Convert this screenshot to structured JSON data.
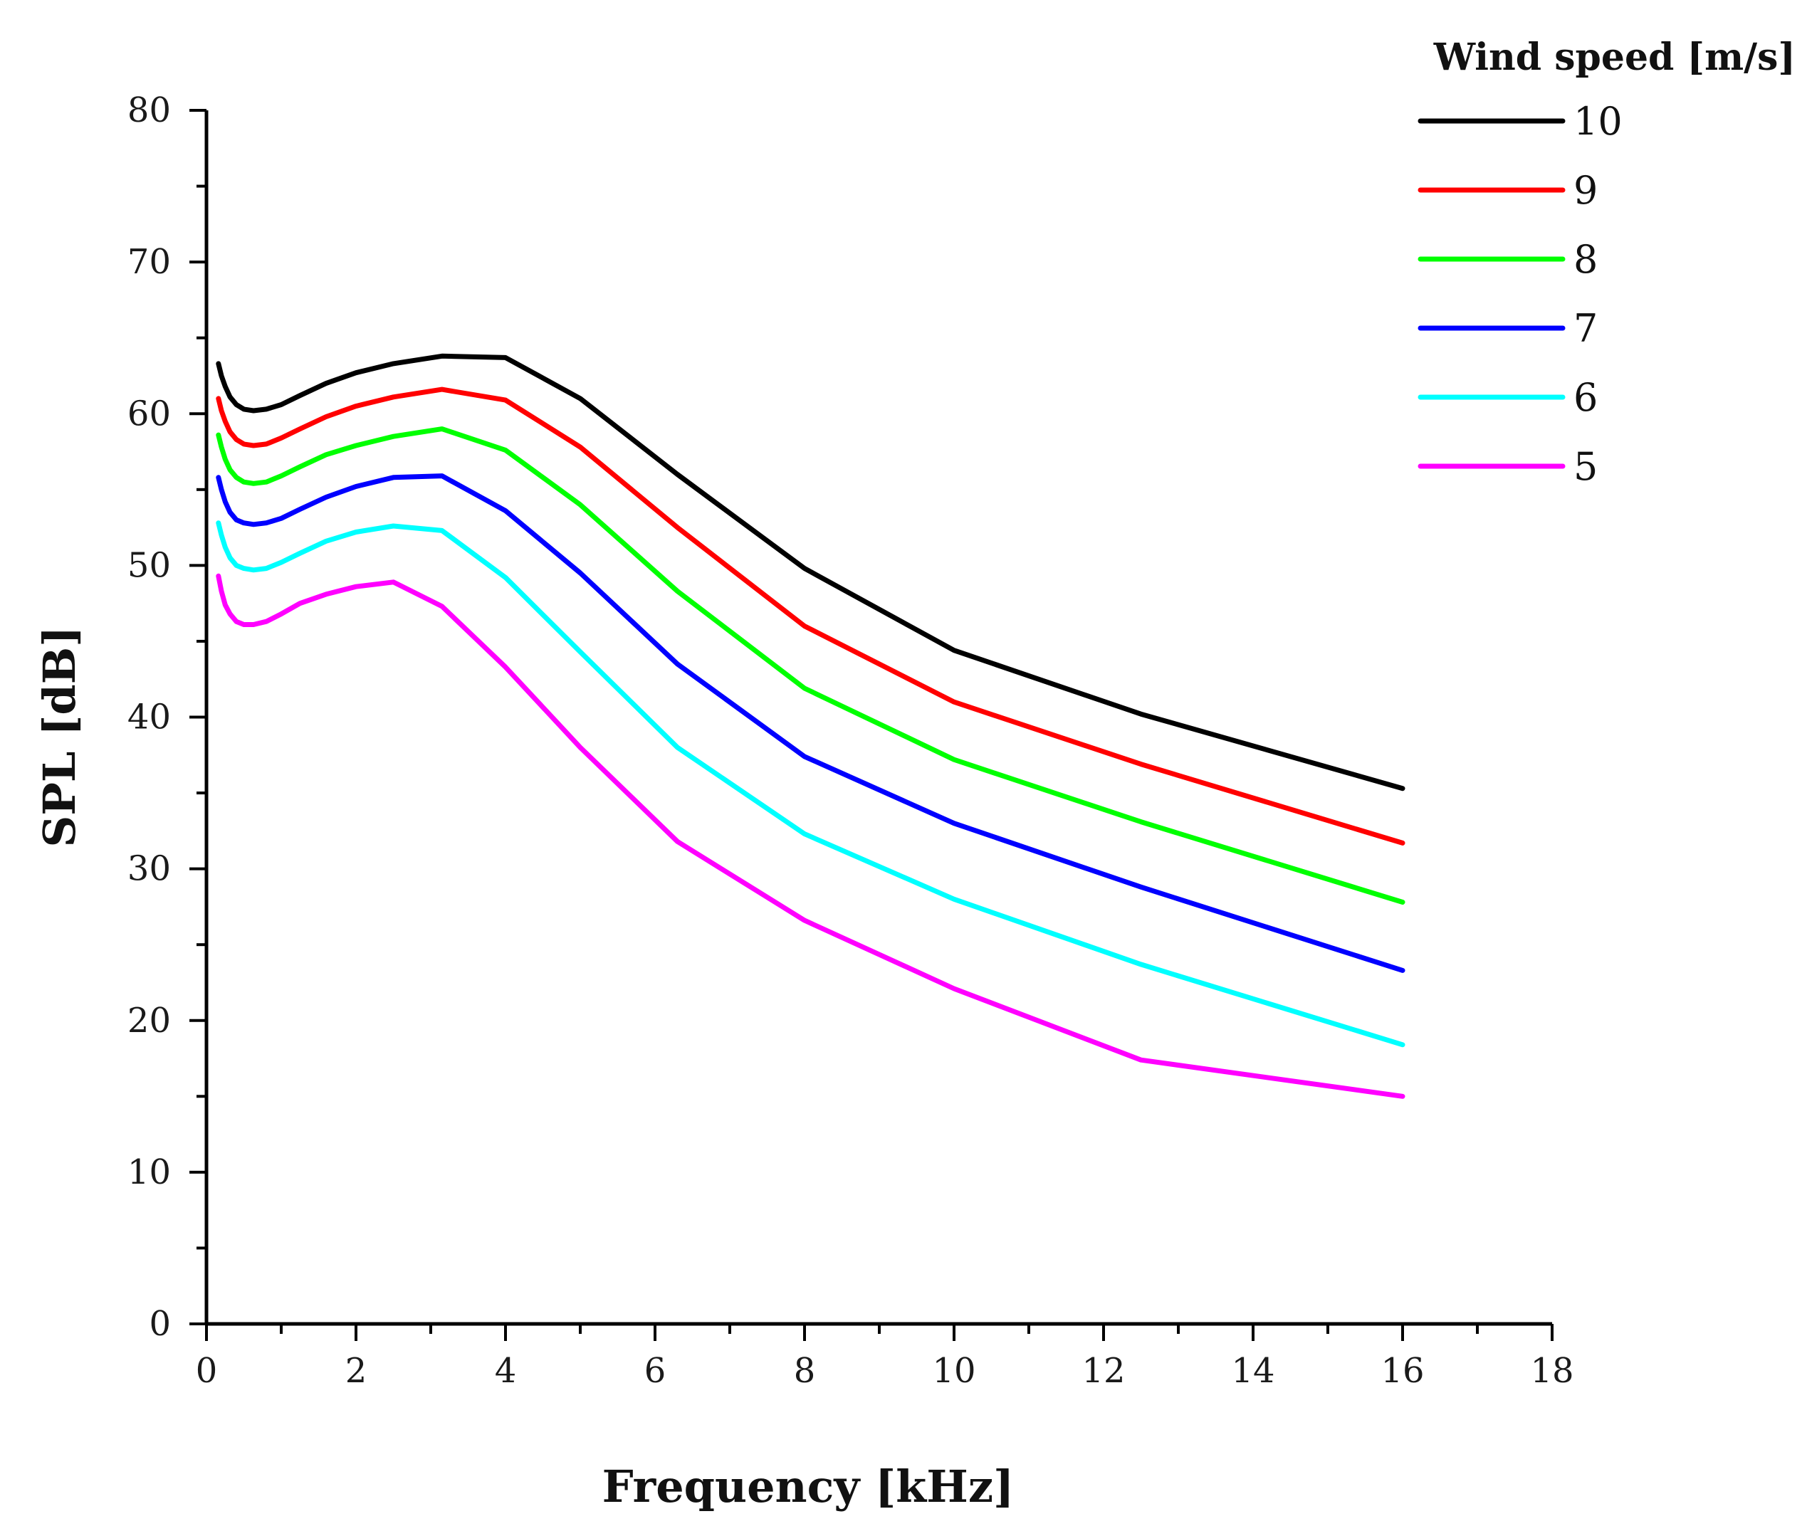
{
  "chart_data": {
    "type": "line",
    "title": "",
    "xlabel": "Frequency [kHz]",
    "ylabel": "SPL [dB]",
    "xlim": [
      0,
      18
    ],
    "ylim": [
      0,
      80
    ],
    "x_ticks": [
      0,
      2,
      4,
      6,
      8,
      10,
      12,
      14,
      16,
      18
    ],
    "y_ticks": [
      0,
      10,
      20,
      30,
      40,
      50,
      60,
      70,
      80
    ],
    "x_tick_labels": [
      "0",
      "2",
      "4",
      "6",
      "8",
      "10",
      "12",
      "14",
      "16",
      "18"
    ],
    "y_tick_labels": [
      "0",
      "10",
      "20",
      "30",
      "40",
      "50",
      "60",
      "70",
      "80"
    ],
    "grid": false,
    "legend": {
      "title": "Wind speed [m/s]",
      "position": "top-right"
    },
    "x": [
      0.16,
      0.2,
      0.25,
      0.315,
      0.4,
      0.5,
      0.63,
      0.8,
      1.0,
      1.25,
      1.6,
      2.0,
      2.5,
      3.15,
      4.0,
      5.0,
      6.3,
      8.0,
      10.0,
      12.5,
      16.0
    ],
    "series": [
      {
        "name": "10",
        "color": "#000000",
        "values": [
          63.3,
          62.5,
          61.8,
          61.1,
          60.6,
          60.3,
          60.2,
          60.3,
          60.6,
          61.2,
          62.0,
          62.7,
          63.3,
          63.8,
          63.7,
          61.0,
          56.0,
          49.8,
          44.4,
          40.2,
          35.3
        ]
      },
      {
        "name": "9",
        "color": "#ff0000",
        "values": [
          61.0,
          60.2,
          59.5,
          58.8,
          58.3,
          58.0,
          57.9,
          58.0,
          58.4,
          59.0,
          59.8,
          60.5,
          61.1,
          61.6,
          60.9,
          57.8,
          52.5,
          46.0,
          41.0,
          36.9,
          31.7
        ]
      },
      {
        "name": "8",
        "color": "#00ff00",
        "values": [
          58.6,
          57.8,
          57.0,
          56.3,
          55.8,
          55.5,
          55.4,
          55.5,
          55.9,
          56.5,
          57.3,
          57.9,
          58.5,
          59.0,
          57.6,
          54.0,
          48.3,
          41.9,
          37.2,
          33.1,
          27.8
        ]
      },
      {
        "name": "7",
        "color": "#0000ff",
        "values": [
          55.8,
          55.0,
          54.2,
          53.5,
          53.0,
          52.8,
          52.7,
          52.8,
          53.1,
          53.7,
          54.5,
          55.2,
          55.8,
          55.9,
          53.6,
          49.5,
          43.5,
          37.4,
          33.0,
          28.8,
          23.3
        ]
      },
      {
        "name": "6",
        "color": "#00ffff",
        "values": [
          52.8,
          52.0,
          51.2,
          50.5,
          50.0,
          49.8,
          49.7,
          49.8,
          50.2,
          50.8,
          51.6,
          52.2,
          52.6,
          52.3,
          49.2,
          44.3,
          38.0,
          32.3,
          28.0,
          23.7,
          18.4
        ]
      },
      {
        "name": "5",
        "color": "#ff00ff",
        "values": [
          49.3,
          48.3,
          47.4,
          46.8,
          46.3,
          46.1,
          46.1,
          46.3,
          46.8,
          47.5,
          48.1,
          48.6,
          48.9,
          47.3,
          43.3,
          38.0,
          31.8,
          26.6,
          22.1,
          17.4,
          15.0
        ]
      }
    ]
  }
}
